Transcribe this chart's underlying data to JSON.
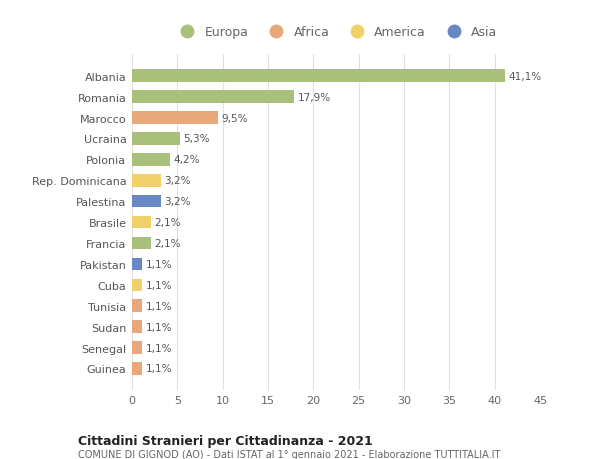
{
  "countries": [
    "Albania",
    "Romania",
    "Marocco",
    "Ucraina",
    "Polonia",
    "Rep. Dominicana",
    "Palestina",
    "Brasile",
    "Francia",
    "Pakistan",
    "Cuba",
    "Tunisia",
    "Sudan",
    "Senegal",
    "Guinea"
  ],
  "values": [
    41.1,
    17.9,
    9.5,
    5.3,
    4.2,
    3.2,
    3.2,
    2.1,
    2.1,
    1.1,
    1.1,
    1.1,
    1.1,
    1.1,
    1.1
  ],
  "labels": [
    "41,1%",
    "17,9%",
    "9,5%",
    "5,3%",
    "4,2%",
    "3,2%",
    "3,2%",
    "2,1%",
    "2,1%",
    "1,1%",
    "1,1%",
    "1,1%",
    "1,1%",
    "1,1%",
    "1,1%"
  ],
  "categories": [
    "Europa",
    "Europa",
    "Africa",
    "Europa",
    "Europa",
    "America",
    "Asia",
    "America",
    "Europa",
    "Asia",
    "America",
    "Africa",
    "Africa",
    "Africa",
    "Africa"
  ],
  "colors": {
    "Europa": "#a8c07a",
    "Africa": "#e8a87a",
    "America": "#f0d068",
    "Asia": "#6888c4"
  },
  "title": "Cittadini Stranieri per Cittadinanza - 2021",
  "subtitle": "COMUNE DI GIGNOD (AO) - Dati ISTAT al 1° gennaio 2021 - Elaborazione TUTTITALIA.IT",
  "xlim": [
    0,
    45
  ],
  "xticks": [
    0,
    5,
    10,
    15,
    20,
    25,
    30,
    35,
    40,
    45
  ],
  "background_color": "#ffffff",
  "grid_color": "#e0e0e0",
  "legend_order": [
    "Europa",
    "Africa",
    "America",
    "Asia"
  ]
}
